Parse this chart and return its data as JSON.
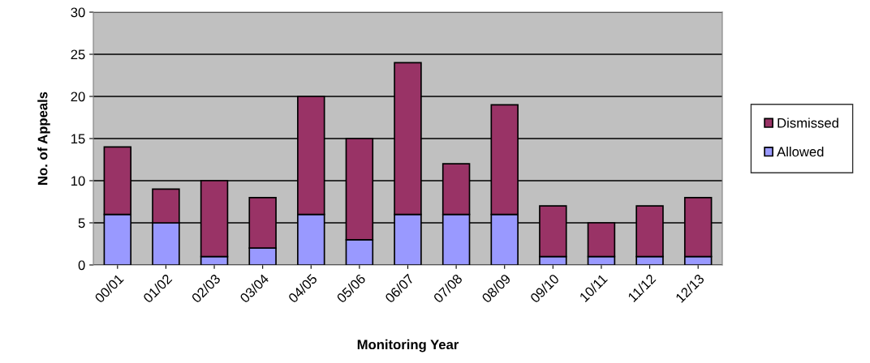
{
  "chart_data": {
    "type": "bar",
    "stacked": true,
    "xlabel": "Monitoring Year",
    "ylabel": "No. of Appeals",
    "categories": [
      "00/01",
      "01/02",
      "02/03",
      "03/04",
      "04/05",
      "05/06",
      "06/07",
      "07/08",
      "08/09",
      "09/10",
      "10/11",
      "11/12",
      "12/13"
    ],
    "series": [
      {
        "name": "Allowed",
        "color": "#9999ff",
        "values": [
          6,
          5,
          1,
          2,
          6,
          3,
          6,
          6,
          6,
          1,
          1,
          1,
          1
        ]
      },
      {
        "name": "Dismissed",
        "color": "#993366",
        "values": [
          8,
          4,
          9,
          6,
          14,
          12,
          18,
          6,
          13,
          6,
          4,
          6,
          7
        ]
      }
    ],
    "ylim": [
      0,
      30
    ],
    "yticks": [
      0,
      5,
      10,
      15,
      20,
      25,
      30
    ],
    "grid": "y",
    "legend": "right"
  }
}
